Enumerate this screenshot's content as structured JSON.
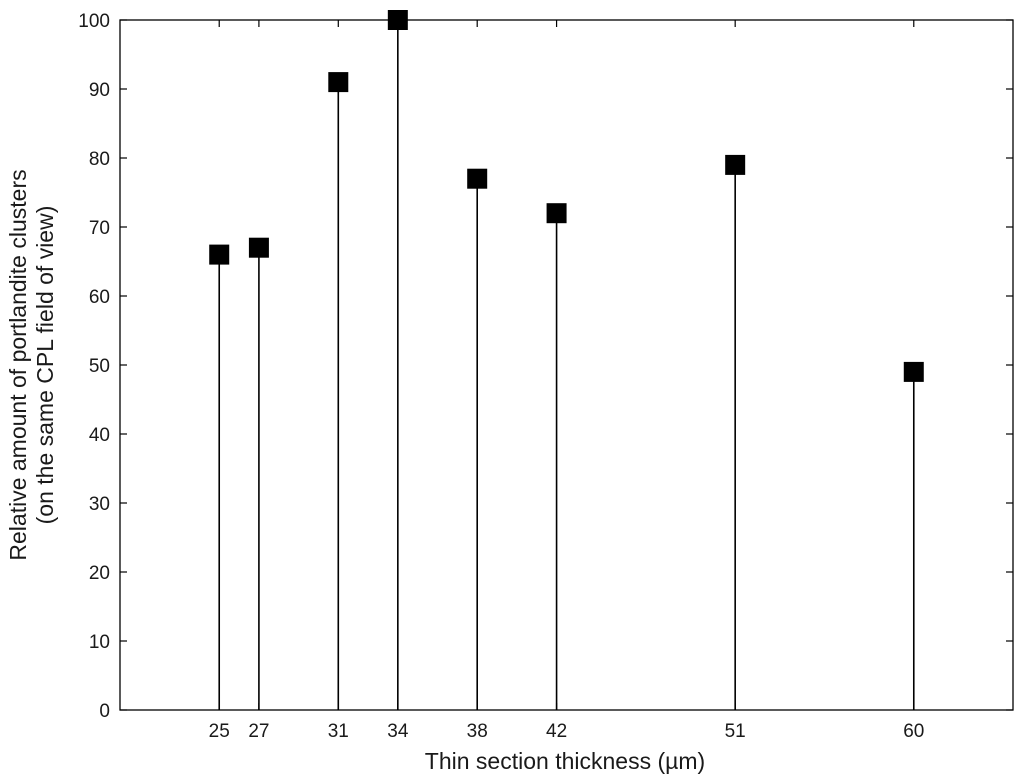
{
  "chart_data": {
    "type": "scatter",
    "marker": "filled-square",
    "stems": true,
    "xlabel": "Thin section thickness (µm)",
    "ylabel": [
      "Relative amount of portlandite clusters",
      "(on the same CPL field of view)"
    ],
    "x": [
      25,
      27,
      31,
      34,
      38,
      42,
      51,
      60
    ],
    "y": [
      66,
      67,
      91,
      100,
      77,
      72,
      79,
      49
    ],
    "xticks": [
      25,
      27,
      31,
      34,
      38,
      42,
      51,
      60
    ],
    "xlim": [
      20,
      65
    ],
    "ylim": [
      0,
      100
    ],
    "yticks": [
      0,
      10,
      20,
      30,
      40,
      50,
      60,
      70,
      80,
      90,
      100
    ],
    "grid": false,
    "legend": "none",
    "colors": {
      "marker": "#000000",
      "stem": "#000000",
      "axis": "#000000"
    }
  }
}
